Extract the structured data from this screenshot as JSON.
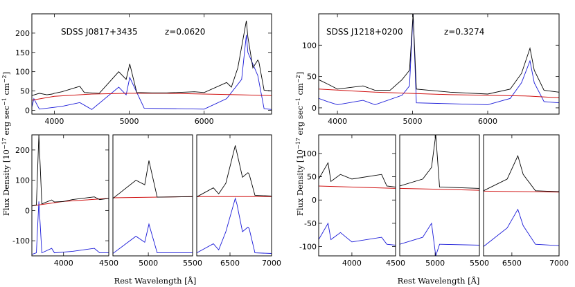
{
  "figure": {
    "colors": {
      "observed": "#000000",
      "host_model": "#d01010",
      "residual": "#1818d8"
    },
    "left": {
      "object": "SDSS J0817+3435",
      "redshift": "z=0.0620",
      "ylabel": "Flux Density [10",
      "ylabel_exp": "−17",
      "ylabel_units": " erg sec",
      "ylabel_exp2": "−1",
      "ylabel_units2": " cm",
      "ylabel_exp3": "−2",
      "ylabel_end": "]",
      "xlabel": "Rest Wavelength [Å]"
    },
    "right": {
      "object": "SDSS J1218+0200",
      "redshift": "z=0.3274",
      "ylabel": "Flux Density [10",
      "ylabel_exp": "−17",
      "ylabel_units": " erg sec",
      "ylabel_exp2": "−1",
      "ylabel_units2": " cm",
      "ylabel_exp3": "−2",
      "ylabel_end": "]",
      "xlabel": "Rest Wavelength [Å]"
    }
  },
  "chart_data": [
    {
      "type": "line",
      "id": "L_top",
      "xlim": [
        3700,
        6900
      ],
      "ylim": [
        -10,
        250
      ],
      "xticks": [
        4000,
        5000,
        6000
      ],
      "yticks": [
        0,
        50,
        100,
        150,
        200
      ],
      "series": [
        {
          "role": "observed",
          "points": [
            [
              3700,
              38
            ],
            [
              3800,
              44
            ],
            [
              3900,
              40
            ],
            [
              3970,
              42
            ],
            [
              4000,
              44
            ],
            [
              4100,
              48
            ],
            [
              4340,
              62
            ],
            [
              4400,
              46
            ],
            [
              4600,
              44
            ],
            [
              4860,
              100
            ],
            [
              4959,
              80
            ],
            [
              5007,
              120
            ],
            [
              5100,
              46
            ],
            [
              5300,
              45
            ],
            [
              5500,
              45
            ],
            [
              5870,
              48
            ],
            [
              6000,
              46
            ],
            [
              6300,
              72
            ],
            [
              6364,
              60
            ],
            [
              6450,
              110
            ],
            [
              6563,
              232
            ],
            [
              6584,
              190
            ],
            [
              6650,
              110
            ],
            [
              6716,
              130
            ],
            [
              6731,
              125
            ],
            [
              6800,
              52
            ],
            [
              6900,
              50
            ]
          ]
        },
        {
          "role": "host_model",
          "points": [
            [
              3700,
              26
            ],
            [
              4000,
              36
            ],
            [
              4500,
              42
            ],
            [
              5000,
              44
            ],
            [
              5500,
              44
            ],
            [
              6000,
              42
            ],
            [
              6500,
              40
            ],
            [
              6900,
              38
            ]
          ]
        },
        {
          "role": "residual",
          "points": [
            [
              3700,
              8
            ],
            [
              3727,
              30
            ],
            [
              3800,
              3
            ],
            [
              4100,
              10
            ],
            [
              4340,
              20
            ],
            [
              4500,
              2
            ],
            [
              4860,
              60
            ],
            [
              4959,
              40
            ],
            [
              5007,
              85
            ],
            [
              5200,
              5
            ],
            [
              6000,
              3
            ],
            [
              6300,
              30
            ],
            [
              6500,
              80
            ],
            [
              6563,
              195
            ],
            [
              6584,
              150
            ],
            [
              6716,
              90
            ],
            [
              6800,
              4
            ],
            [
              6900,
              2
            ]
          ]
        }
      ]
    },
    {
      "type": "line",
      "id": "R_top",
      "xlim": [
        3750,
        6950
      ],
      "ylim": [
        -10,
        150
      ],
      "xticks": [
        4000,
        5000,
        6000
      ],
      "yticks": [
        0,
        50,
        100
      ],
      "series": [
        {
          "role": "observed",
          "points": [
            [
              3750,
              45
            ],
            [
              3869,
              38
            ],
            [
              4000,
              30
            ],
            [
              4340,
              35
            ],
            [
              4500,
              28
            ],
            [
              4700,
              28
            ],
            [
              4860,
              45
            ],
            [
              4959,
              60
            ],
            [
              5007,
              150
            ],
            [
              5050,
              30
            ],
            [
              5500,
              25
            ],
            [
              6000,
              22
            ],
            [
              6300,
              30
            ],
            [
              6450,
              55
            ],
            [
              6563,
              95
            ],
            [
              6620,
              60
            ],
            [
              6750,
              28
            ],
            [
              6950,
              25
            ]
          ]
        },
        {
          "role": "host_model",
          "points": [
            [
              3750,
              30
            ],
            [
              4500,
              25
            ],
            [
              5500,
              21
            ],
            [
              6500,
              19
            ],
            [
              6950,
              16
            ]
          ]
        },
        {
          "role": "residual",
          "points": [
            [
              3750,
              15
            ],
            [
              3869,
              10
            ],
            [
              4000,
              5
            ],
            [
              4340,
              12
            ],
            [
              4500,
              5
            ],
            [
              4860,
              20
            ],
            [
              4959,
              35
            ],
            [
              5007,
              150
            ],
            [
              5050,
              8
            ],
            [
              6000,
              5
            ],
            [
              6300,
              15
            ],
            [
              6450,
              40
            ],
            [
              6563,
              75
            ],
            [
              6620,
              40
            ],
            [
              6750,
              10
            ],
            [
              6950,
              8
            ]
          ]
        }
      ]
    },
    {
      "type": "line",
      "id": "L_b1",
      "xlim": [
        3650,
        4500
      ],
      "ylim": [
        -150,
        250
      ],
      "xticks": [
        4000,
        4500
      ],
      "yticks": [
        -100,
        0,
        100,
        200
      ],
      "series": [
        {
          "role": "observed",
          "points": [
            [
              3650,
              15
            ],
            [
              3700,
              18
            ],
            [
              3727,
              250
            ],
            [
              3760,
              22
            ],
            [
              3869,
              35
            ],
            [
              3900,
              28
            ],
            [
              4000,
              30
            ],
            [
              4100,
              36
            ],
            [
              4340,
              45
            ],
            [
              4400,
              36
            ],
            [
              4500,
              40
            ]
          ]
        },
        {
          "role": "host_model",
          "points": [
            [
              3650,
              15
            ],
            [
              4000,
              30
            ],
            [
              4500,
              40
            ]
          ]
        },
        {
          "role": "residual",
          "points": [
            [
              3650,
              -145
            ],
            [
              3700,
              -140
            ],
            [
              3727,
              30
            ],
            [
              3760,
              -140
            ],
            [
              3869,
              -125
            ],
            [
              3900,
              -140
            ],
            [
              4100,
              -135
            ],
            [
              4340,
              -125
            ],
            [
              4400,
              -140
            ],
            [
              4500,
              -140
            ]
          ]
        }
      ]
    },
    {
      "type": "line",
      "id": "L_b2",
      "xlim": [
        4600,
        5500
      ],
      "ylim": [
        -150,
        250
      ],
      "xticks": [
        5000,
        5500
      ],
      "yticks": [],
      "series": [
        {
          "role": "observed",
          "points": [
            [
              4600,
              40
            ],
            [
              4860,
              100
            ],
            [
              4959,
              85
            ],
            [
              5007,
              165
            ],
            [
              5100,
              44
            ],
            [
              5500,
              46
            ]
          ]
        },
        {
          "role": "host_model",
          "points": [
            [
              4600,
              42
            ],
            [
              5500,
              46
            ]
          ]
        },
        {
          "role": "residual",
          "points": [
            [
              4600,
              -142
            ],
            [
              4860,
              -85
            ],
            [
              4959,
              -105
            ],
            [
              5007,
              -45
            ],
            [
              5100,
              -140
            ],
            [
              5500,
              -140
            ]
          ]
        }
      ]
    },
    {
      "type": "line",
      "id": "L_b3",
      "xlim": [
        6100,
        7000
      ],
      "ylim": [
        -150,
        250
      ],
      "xticks": [
        6500,
        7000
      ],
      "yticks": [],
      "series": [
        {
          "role": "observed",
          "points": [
            [
              6100,
              45
            ],
            [
              6300,
              75
            ],
            [
              6364,
              55
            ],
            [
              6450,
              90
            ],
            [
              6563,
              215
            ],
            [
              6584,
              190
            ],
            [
              6650,
              110
            ],
            [
              6716,
              125
            ],
            [
              6731,
              120
            ],
            [
              6800,
              50
            ],
            [
              7000,
              48
            ]
          ]
        },
        {
          "role": "host_model",
          "points": [
            [
              6100,
              46
            ],
            [
              7000,
              46
            ]
          ]
        },
        {
          "role": "residual",
          "points": [
            [
              6100,
              -140
            ],
            [
              6300,
              -110
            ],
            [
              6364,
              -130
            ],
            [
              6450,
              -70
            ],
            [
              6563,
              40
            ],
            [
              6584,
              20
            ],
            [
              6650,
              -70
            ],
            [
              6716,
              -55
            ],
            [
              6731,
              -60
            ],
            [
              6800,
              -140
            ],
            [
              7000,
              -142
            ]
          ]
        }
      ]
    },
    {
      "type": "line",
      "id": "R_b1",
      "xlim": [
        3620,
        4500
      ],
      "ylim": [
        -120,
        140
      ],
      "xticks": [
        4000,
        4500
      ],
      "yticks": [
        -100,
        -50,
        0,
        50,
        100
      ],
      "series": [
        {
          "role": "observed",
          "points": [
            [
              3620,
              45
            ],
            [
              3727,
              80
            ],
            [
              3760,
              40
            ],
            [
              3869,
              55
            ],
            [
              4000,
              45
            ],
            [
              4340,
              55
            ],
            [
              4400,
              30
            ],
            [
              4500,
              28
            ]
          ]
        },
        {
          "role": "host_model",
          "points": [
            [
              3620,
              30
            ],
            [
              4500,
              25
            ]
          ]
        },
        {
          "role": "residual",
          "points": [
            [
              3620,
              -85
            ],
            [
              3727,
              -50
            ],
            [
              3760,
              -85
            ],
            [
              3869,
              -70
            ],
            [
              4000,
              -90
            ],
            [
              4340,
              -80
            ],
            [
              4400,
              -95
            ],
            [
              4500,
              -97
            ]
          ]
        }
      ]
    },
    {
      "type": "line",
      "id": "R_b2",
      "xlim": [
        4600,
        5500
      ],
      "ylim": [
        -120,
        140
      ],
      "xticks": [
        5000,
        5500
      ],
      "yticks": [],
      "series": [
        {
          "role": "observed",
          "points": [
            [
              4600,
              30
            ],
            [
              4860,
              45
            ],
            [
              4959,
              70
            ],
            [
              5007,
              140
            ],
            [
              5050,
              28
            ],
            [
              5500,
              25
            ]
          ]
        },
        {
          "role": "host_model",
          "points": [
            [
              4600,
              25
            ],
            [
              5500,
              21
            ]
          ]
        },
        {
          "role": "residual",
          "points": [
            [
              4600,
              -95
            ],
            [
              4860,
              -80
            ],
            [
              4959,
              -50
            ],
            [
              5007,
              -120
            ],
            [
              5050,
              -95
            ],
            [
              5500,
              -97
            ]
          ]
        }
      ]
    },
    {
      "type": "line",
      "id": "R_b3",
      "xlim": [
        6200,
        7000
      ],
      "ylim": [
        -120,
        140
      ],
      "xticks": [
        6500,
        7000
      ],
      "yticks": [],
      "series": [
        {
          "role": "observed",
          "points": [
            [
              6200,
              20
            ],
            [
              6450,
              45
            ],
            [
              6563,
              95
            ],
            [
              6620,
              55
            ],
            [
              6750,
              20
            ],
            [
              7000,
              18
            ]
          ]
        },
        {
          "role": "host_model",
          "points": [
            [
              6200,
              19
            ],
            [
              7000,
              17
            ]
          ]
        },
        {
          "role": "residual",
          "points": [
            [
              6200,
              -100
            ],
            [
              6450,
              -60
            ],
            [
              6563,
              -20
            ],
            [
              6620,
              -55
            ],
            [
              6750,
              -95
            ],
            [
              7000,
              -98
            ]
          ]
        }
      ]
    }
  ]
}
